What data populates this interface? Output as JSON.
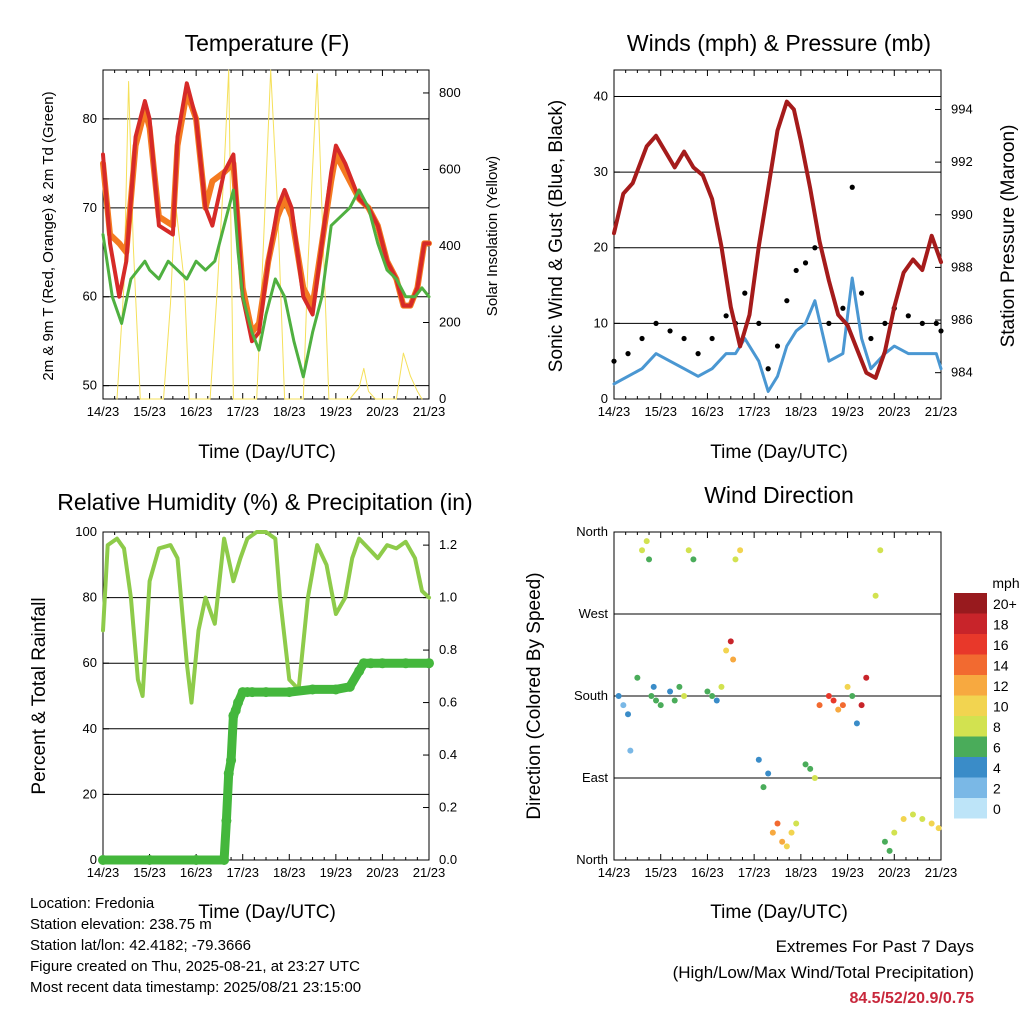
{
  "panels": {
    "temperature": {
      "title": "Temperature (F)",
      "ylabel_left": "2m & 9m T (Red, Orange) & 2m Td (Green)",
      "ylabel_right": "Solar Insolation (Yellow)",
      "xlabel": "Time (Day/UTC)"
    },
    "winds": {
      "title": "Winds (mph) & Pressure (mb)",
      "ylabel_left": "Sonic Wind & Gust (Blue, Black)",
      "ylabel_right": "Station Pressure (Maroon)",
      "xlabel": "Time (Day/UTC)"
    },
    "humidity": {
      "title": "Relative Humidity (%) & Precipitation (in)",
      "ylabel_left": "Percent & Total Rainfall",
      "xlabel": "Time (Day/UTC)"
    },
    "direction": {
      "title": "Wind Direction",
      "ylabel_left": "Direction (Colored By Speed)",
      "xlabel": "Time (Day/UTC)",
      "legend_title": "mph"
    }
  },
  "info": {
    "location": "Location: Fredonia",
    "elevation": "Station elevation: 238.75 m",
    "latlon": "Station lat/lon: 42.4182; -79.3666",
    "created": "Figure created on Thu, 2025-08-21, at 23:27 UTC",
    "recent": "Most recent data timestamp: 2025/08/21 23:15:00"
  },
  "extremes": {
    "line1": "Extremes For Past 7 Days",
    "line2": "(High/Low/Max Wind/Total Precipitation)",
    "values": "84.5/52/20.9/0.75"
  },
  "colors": {
    "temp_2m": "#d62a28",
    "temp_9m": "#f47a20",
    "dewpoint": "#4fb040",
    "solar": "#f5e05a",
    "gust": "#000000",
    "wind": "#4a97d2",
    "pressure": "#a51b1b",
    "rh": "#8ecb4a",
    "precip": "#44b73c"
  },
  "chart_data": [
    {
      "type": "line",
      "title": "Temperature (F)",
      "xlabel": "Time (Day/UTC)",
      "ylabel": "2m & 9m T (Red, Orange) & 2m Td (Green)",
      "ylabel_right": "Solar Insolation (Yellow)",
      "x_ticks": [
        "14/23",
        "15/23",
        "16/23",
        "17/23",
        "18/23",
        "19/23",
        "20/23",
        "21/23"
      ],
      "xlim": [
        0,
        7
      ],
      "ylim": [
        48.5,
        85.5
      ],
      "y_ticks": [
        50,
        60,
        70,
        80
      ],
      "ylim_right": [
        0,
        860
      ],
      "y_ticks_right": [
        0,
        200,
        400,
        600,
        800
      ],
      "grid": true,
      "x_unit": "days since 14/23",
      "series": [
        {
          "name": "2m T",
          "axis": "left",
          "x": [
            0,
            0.15,
            0.35,
            0.5,
            0.7,
            0.9,
            1.0,
            1.2,
            1.5,
            1.6,
            1.8,
            2.0,
            2.2,
            2.35,
            2.6,
            2.8,
            3.0,
            3.2,
            3.35,
            3.55,
            3.75,
            3.9,
            4.05,
            4.3,
            4.5,
            4.7,
            4.9,
            5.0,
            5.2,
            5.5,
            5.7,
            5.9,
            6.1,
            6.3,
            6.45,
            6.6,
            6.75,
            6.9,
            7.0
          ],
          "values": [
            76,
            66,
            60,
            64,
            78,
            82,
            80,
            68,
            67,
            78,
            84,
            80,
            70,
            68,
            74,
            76,
            60,
            55,
            56,
            64,
            70,
            72,
            70,
            60,
            58,
            66,
            74,
            77,
            75,
            71,
            70,
            68,
            64,
            62,
            59,
            59,
            61,
            66,
            66
          ]
        },
        {
          "name": "9m T",
          "axis": "left",
          "x": [
            0,
            0.15,
            0.35,
            0.5,
            0.7,
            0.9,
            1.0,
            1.2,
            1.5,
            1.6,
            1.8,
            2.0,
            2.2,
            2.35,
            2.6,
            2.8,
            3.0,
            3.2,
            3.35,
            3.55,
            3.75,
            3.9,
            4.05,
            4.3,
            4.5,
            4.7,
            4.9,
            5.0,
            5.2,
            5.5,
            5.7,
            5.9,
            6.1,
            6.3,
            6.45,
            6.6,
            6.75,
            6.9,
            7.0
          ],
          "values": [
            75,
            67,
            66,
            65,
            77,
            81,
            79,
            69,
            68,
            77,
            83,
            80,
            70,
            73,
            74,
            75,
            61,
            56,
            57,
            64,
            69,
            71,
            69,
            61,
            59,
            66,
            73,
            76,
            74,
            71,
            70,
            68,
            64,
            62,
            59,
            59,
            61,
            66,
            66
          ]
        },
        {
          "name": "2m Td",
          "axis": "left",
          "x": [
            0,
            0.2,
            0.4,
            0.6,
            0.9,
            1.0,
            1.2,
            1.4,
            1.6,
            1.8,
            2.0,
            2.2,
            2.4,
            2.6,
            2.8,
            2.9,
            3.0,
            3.2,
            3.35,
            3.5,
            3.7,
            3.9,
            4.1,
            4.3,
            4.5,
            4.7,
            4.9,
            5.1,
            5.3,
            5.5,
            5.7,
            5.9,
            6.1,
            6.3,
            6.5,
            6.7,
            6.85,
            7.0
          ],
          "values": [
            67,
            60,
            57,
            62,
            64,
            63,
            62,
            64,
            63,
            62,
            64,
            63,
            64,
            68,
            72,
            65,
            60,
            56,
            54,
            58,
            62,
            60,
            55,
            51,
            56,
            60,
            68,
            69,
            70,
            72,
            70,
            66,
            63,
            62,
            60,
            60,
            61,
            60
          ]
        },
        {
          "name": "Solar",
          "axis": "right",
          "x": [
            0.3,
            0.45,
            0.55,
            0.65,
            0.8,
            1.3,
            1.45,
            1.55,
            1.75,
            1.85,
            2.3,
            2.45,
            2.6,
            2.7,
            2.8,
            3.3,
            3.45,
            3.6,
            3.75,
            3.9,
            4.3,
            4.4,
            4.6,
            4.7,
            4.85,
            5.3,
            5.5,
            5.6,
            5.7,
            5.85,
            6.3,
            6.45,
            6.6,
            6.75,
            6.85
          ],
          "values": [
            0,
            300,
            830,
            400,
            0,
            0,
            250,
            520,
            300,
            0,
            0,
            280,
            600,
            860,
            0,
            0,
            420,
            860,
            500,
            0,
            0,
            350,
            850,
            500,
            0,
            0,
            30,
            80,
            20,
            0,
            0,
            120,
            60,
            20,
            0
          ]
        }
      ]
    },
    {
      "type": "line",
      "title": "Winds (mph) & Pressure (mb)",
      "xlabel": "Time (Day/UTC)",
      "ylabel": "Sonic Wind & Gust (Blue, Black)",
      "ylabel_right": "Station Pressure (Maroon)",
      "x_ticks": [
        "14/23",
        "15/23",
        "16/23",
        "17/23",
        "18/23",
        "19/23",
        "20/23",
        "21/23"
      ],
      "xlim": [
        0,
        7
      ],
      "ylim": [
        0,
        43.5
      ],
      "y_ticks": [
        0,
        10,
        20,
        30,
        40
      ],
      "ylim_right": [
        983.0,
        995.5
      ],
      "y_ticks_right": [
        984,
        986,
        988,
        990,
        992,
        994
      ],
      "grid": true,
      "x_unit": "days since 14/23",
      "series": [
        {
          "name": "Gust",
          "axis": "left",
          "x": [
            0,
            0.3,
            0.6,
            0.9,
            1.2,
            1.5,
            1.8,
            2.1,
            2.4,
            2.6,
            2.8,
            3.1,
            3.3,
            3.5,
            3.7,
            3.9,
            4.1,
            4.3,
            4.6,
            4.9,
            5.1,
            5.3,
            5.5,
            5.8,
            6.0,
            6.3,
            6.6,
            6.9,
            7.0
          ],
          "values": [
            5,
            6,
            8,
            10,
            9,
            8,
            6,
            8,
            11,
            10,
            14,
            10,
            4,
            7,
            13,
            17,
            18,
            20,
            10,
            12,
            28,
            14,
            8,
            10,
            12,
            11,
            10,
            10,
            9
          ]
        },
        {
          "name": "Wind",
          "axis": "left",
          "x": [
            0,
            0.3,
            0.6,
            0.9,
            1.2,
            1.5,
            1.8,
            2.1,
            2.4,
            2.6,
            2.8,
            3.1,
            3.3,
            3.5,
            3.7,
            3.9,
            4.1,
            4.3,
            4.6,
            4.9,
            5.1,
            5.3,
            5.5,
            5.8,
            6.0,
            6.3,
            6.6,
            6.9,
            7.0
          ],
          "values": [
            2,
            3,
            4,
            6,
            5,
            4,
            3,
            4,
            6,
            6,
            8,
            5,
            1,
            3,
            7,
            9,
            10,
            13,
            5,
            6,
            16,
            8,
            4,
            6,
            7,
            6,
            6,
            6,
            4
          ]
        },
        {
          "name": "Pressure",
          "axis": "right",
          "x": [
            0,
            0.2,
            0.4,
            0.7,
            0.9,
            1.1,
            1.3,
            1.5,
            1.7,
            1.9,
            2.1,
            2.3,
            2.5,
            2.7,
            2.9,
            3.1,
            3.3,
            3.5,
            3.7,
            3.85,
            4.0,
            4.2,
            4.4,
            4.6,
            4.8,
            5.0,
            5.2,
            5.4,
            5.6,
            5.8,
            6.0,
            6.2,
            6.4,
            6.6,
            6.8,
            7.0
          ],
          "values": [
            989.3,
            990.8,
            991.2,
            992.6,
            993.0,
            992.4,
            991.8,
            992.4,
            991.8,
            991.5,
            990.6,
            988.8,
            986.5,
            985.0,
            986.2,
            988.8,
            991.0,
            993.2,
            994.3,
            994.0,
            992.8,
            991.0,
            989.0,
            987.5,
            986.2,
            985.8,
            984.9,
            984.0,
            983.8,
            984.8,
            986.5,
            987.8,
            988.3,
            987.9,
            989.2,
            988.2
          ]
        }
      ]
    },
    {
      "type": "line",
      "title": "Relative Humidity (%) & Precipitation (in)",
      "xlabel": "Time (Day/UTC)",
      "ylabel": "Percent & Total Rainfall",
      "x_ticks": [
        "14/23",
        "15/23",
        "16/23",
        "17/23",
        "18/23",
        "19/23",
        "20/23",
        "21/23"
      ],
      "xlim": [
        0,
        7
      ],
      "ylim": [
        0,
        100
      ],
      "y_ticks": [
        0,
        20,
        40,
        60,
        80,
        100
      ],
      "ylim_right": [
        0,
        1.25
      ],
      "y_ticks_right": [
        0.0,
        0.2,
        0.4,
        0.6,
        0.8,
        1.0,
        1.2
      ],
      "grid": true,
      "x_unit": "days since 14/23",
      "series": [
        {
          "name": "RH",
          "axis": "left",
          "x": [
            0,
            0.1,
            0.3,
            0.45,
            0.6,
            0.75,
            0.85,
            1.0,
            1.2,
            1.45,
            1.6,
            1.8,
            1.9,
            2.05,
            2.2,
            2.4,
            2.6,
            2.8,
            2.95,
            3.1,
            3.3,
            3.5,
            3.7,
            3.8,
            4.0,
            4.2,
            4.4,
            4.6,
            4.8,
            5.0,
            5.2,
            5.35,
            5.5,
            5.7,
            5.9,
            6.1,
            6.3,
            6.5,
            6.7,
            6.85,
            7.0
          ],
          "values": [
            70,
            96,
            98,
            95,
            80,
            55,
            50,
            85,
            95,
            96,
            92,
            60,
            48,
            70,
            80,
            72,
            98,
            85,
            92,
            98,
            100,
            100,
            98,
            80,
            55,
            52,
            80,
            96,
            90,
            75,
            80,
            92,
            98,
            95,
            92,
            96,
            95,
            97,
            92,
            82,
            80
          ]
        },
        {
          "name": "Precipitation",
          "axis": "right",
          "x": [
            0,
            1.0,
            2.0,
            2.6,
            2.65,
            2.7,
            2.75,
            2.8,
            2.85,
            2.9,
            3.0,
            3.1,
            3.2,
            3.5,
            4.0,
            4.5,
            5.0,
            5.3,
            5.5,
            5.6,
            5.75,
            6.0,
            6.5,
            7.0
          ],
          "values": [
            0,
            0,
            0,
            0,
            0.15,
            0.33,
            0.38,
            0.55,
            0.57,
            0.6,
            0.64,
            0.64,
            0.64,
            0.64,
            0.64,
            0.65,
            0.65,
            0.66,
            0.72,
            0.75,
            0.75,
            0.75,
            0.75,
            0.75
          ]
        }
      ]
    },
    {
      "type": "scatter",
      "title": "Wind Direction",
      "xlabel": "Time (Day/UTC)",
      "ylabel": "Direction (Colored By Speed)",
      "x_ticks": [
        "14/23",
        "15/23",
        "16/23",
        "17/23",
        "18/23",
        "19/23",
        "20/23",
        "21/23"
      ],
      "xlim": [
        0,
        7
      ],
      "y_ticks": [
        "North",
        "East",
        "South",
        "West",
        "North"
      ],
      "ylim": [
        0,
        360
      ],
      "grid": true,
      "x_unit": "days since 14/23",
      "legend": {
        "title": "mph",
        "labels": [
          "20+",
          "18",
          "16",
          "14",
          "12",
          "10",
          "8",
          "6",
          "4",
          "2",
          "0"
        ],
        "colors": [
          "#981a1e",
          "#c8242a",
          "#e8382a",
          "#f26a30",
          "#f7a940",
          "#f2d450",
          "#d2e250",
          "#4aac5a",
          "#3a8cc8",
          "#7ab8e6",
          "#bde4f8"
        ]
      },
      "series": [
        {
          "name": "Direction",
          "x": [
            0.1,
            0.2,
            0.3,
            0.35,
            0.5,
            0.6,
            0.7,
            0.75,
            0.8,
            0.85,
            0.9,
            1.0,
            1.2,
            1.3,
            1.4,
            1.5,
            1.6,
            1.7,
            2.0,
            2.1,
            2.2,
            2.3,
            2.4,
            2.5,
            2.55,
            2.6,
            2.7,
            3.1,
            3.2,
            3.3,
            3.4,
            3.5,
            3.6,
            3.7,
            3.8,
            3.9,
            4.1,
            4.2,
            4.3,
            4.4,
            4.6,
            4.7,
            4.8,
            4.9,
            5.0,
            5.1,
            5.2,
            5.3,
            5.4,
            5.6,
            5.7,
            5.8,
            5.9,
            6.0,
            6.2,
            6.4,
            6.6,
            6.8,
            6.95
          ],
          "values": [
            180,
            170,
            160,
            120,
            200,
            340,
            350,
            330,
            180,
            190,
            175,
            170,
            185,
            175,
            190,
            180,
            340,
            330,
            185,
            180,
            175,
            190,
            230,
            240,
            220,
            330,
            340,
            110,
            80,
            95,
            30,
            40,
            20,
            15,
            30,
            40,
            105,
            100,
            90,
            170,
            180,
            175,
            165,
            170,
            190,
            180,
            150,
            170,
            200,
            290,
            340,
            20,
            10,
            30,
            45,
            50,
            45,
            40,
            35
          ],
          "speeds": [
            3,
            2,
            4,
            1,
            6,
            7,
            8,
            6,
            5,
            4,
            6,
            5,
            4,
            6,
            5,
            7,
            7,
            6,
            5,
            6,
            4,
            7,
            10,
            17,
            12,
            8,
            9,
            3,
            5,
            4,
            11,
            14,
            12,
            10,
            9,
            8,
            5,
            6,
            7,
            14,
            16,
            15,
            12,
            13,
            10,
            5,
            4,
            18,
            17,
            8,
            7,
            5,
            6,
            8,
            9,
            8,
            7,
            10,
            9
          ]
        }
      ]
    }
  ]
}
